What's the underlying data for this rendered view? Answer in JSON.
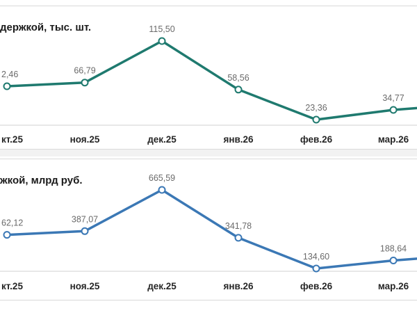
{
  "chart_data": [
    {
      "type": "line",
      "title": "держкой, тыс. шт.",
      "categories": [
        "кт.25",
        "ноя.25",
        "дек.25",
        "янв.26",
        "фев.26",
        "мар.26"
      ],
      "series": [
        {
          "values": [
            62.46,
            66.79,
            115.5,
            58.56,
            23.36,
            34.77
          ],
          "labels": [
            "2,46",
            "66,79",
            "115,50",
            "58,56",
            "23,36",
            "34,77"
          ]
        }
      ],
      "color": "#1f7a6f",
      "grid": false,
      "legend": "none"
    },
    {
      "type": "line",
      "title": "жкой, млрд руб.",
      "categories": [
        "кт.25",
        "ноя.25",
        "дек.25",
        "янв.26",
        "фев.26",
        "мар.26"
      ],
      "series": [
        {
          "values": [
            362.12,
            387.07,
            665.59,
            341.78,
            134.6,
            188.64
          ],
          "labels": [
            "62,12",
            "387,07",
            "665,59",
            "341,78",
            "134,60",
            "188,64"
          ]
        }
      ],
      "color": "#3b78b5",
      "grid": false,
      "legend": "none"
    }
  ]
}
